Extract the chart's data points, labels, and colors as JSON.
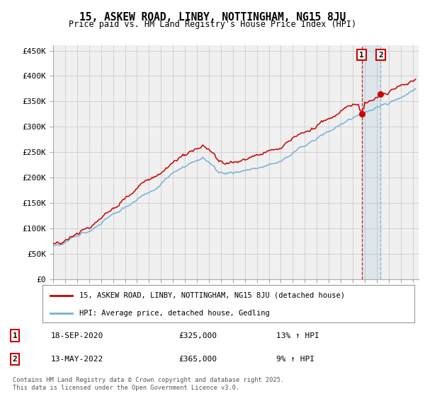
{
  "title": "15, ASKEW ROAD, LINBY, NOTTINGHAM, NG15 8JU",
  "subtitle": "Price paid vs. HM Land Registry's House Price Index (HPI)",
  "legend_label_1": "15, ASKEW ROAD, LINBY, NOTTINGHAM, NG15 8JU (detached house)",
  "legend_label_2": "HPI: Average price, detached house, Gedling",
  "color_red": "#cc0000",
  "color_blue": "#7ab0d4",
  "annotation_1_date": "18-SEP-2020",
  "annotation_1_price": "£325,000",
  "annotation_1_hpi": "13% ↑ HPI",
  "annotation_2_date": "13-MAY-2022",
  "annotation_2_price": "£365,000",
  "annotation_2_hpi": "9% ↑ HPI",
  "footer": "Contains HM Land Registry data © Crown copyright and database right 2025.\nThis data is licensed under the Open Government Licence v3.0.",
  "ylim_min": 0,
  "ylim_max": 460000,
  "yticks": [
    0,
    50000,
    100000,
    150000,
    200000,
    250000,
    300000,
    350000,
    400000,
    450000
  ],
  "ytick_labels": [
    "£0",
    "£50K",
    "£100K",
    "£150K",
    "£200K",
    "£250K",
    "£300K",
    "£350K",
    "£400K",
    "£450K"
  ],
  "background_color": "#f0f0f0",
  "grid_color": "#cccccc",
  "t_sale1": 2020.72,
  "t_sale2": 2022.37,
  "price_sale1": 325000,
  "price_sale2": 365000
}
